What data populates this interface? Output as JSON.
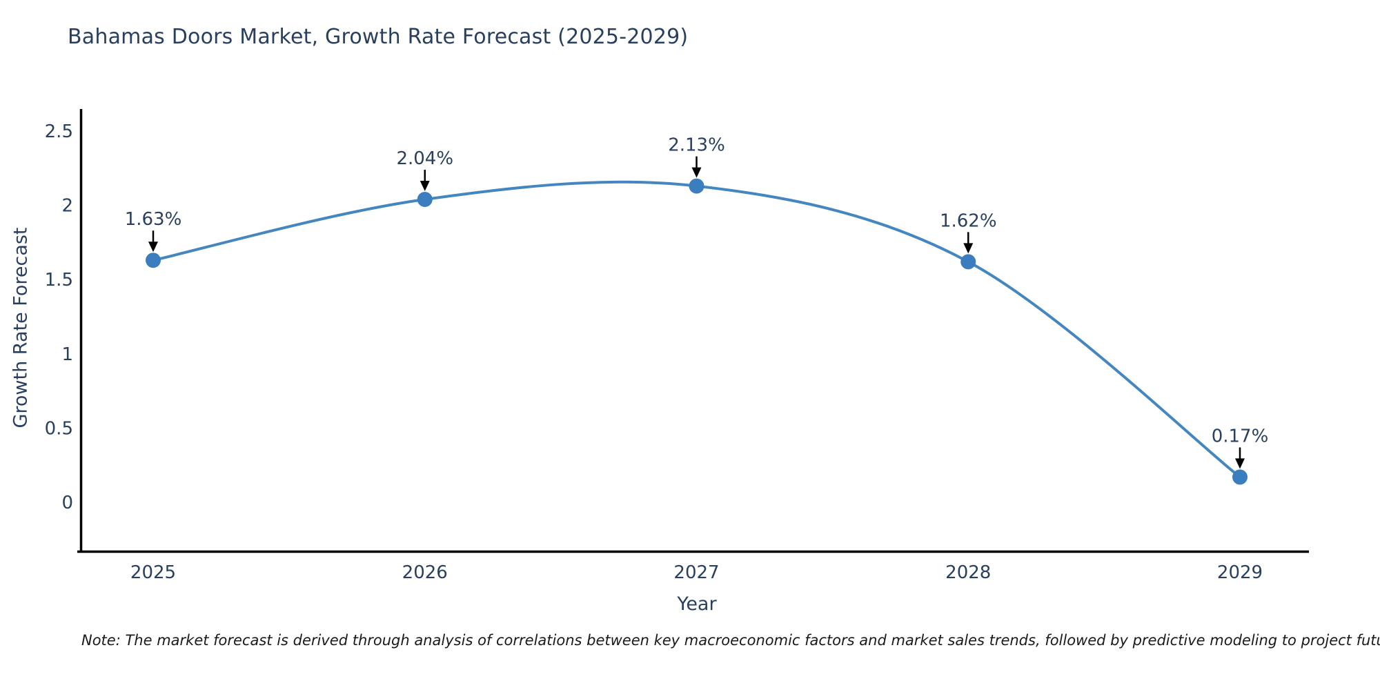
{
  "title": "Bahamas Doors Market, Growth Rate Forecast (2025-2029)",
  "note": "Note: The market forecast is derived through analysis of correlations between key macroeconomic factors and market sales trends, followed by predictive modeling to project future sales",
  "chart_data": {
    "type": "line",
    "title": "Bahamas Doors Market, Growth Rate Forecast (2025-2029)",
    "xlabel": "Year",
    "ylabel": "Growth Rate Forecast",
    "x": [
      2025,
      2026,
      2027,
      2028,
      2029
    ],
    "values": [
      1.63,
      2.04,
      2.13,
      1.62,
      0.17
    ],
    "point_labels": [
      "1.63%",
      "2.04%",
      "2.13%",
      "1.62%",
      "0.17%"
    ],
    "x_ticks": [
      "2025",
      "2026",
      "2027",
      "2028",
      "2029"
    ],
    "y_ticks": [
      "2.5",
      "2",
      "1.5",
      "1",
      "0.5",
      "0"
    ],
    "y_tick_values": [
      2.5,
      2,
      1.5,
      1,
      0.5,
      0
    ],
    "ylim": [
      -0.33,
      2.66
    ],
    "line_shape": "spline",
    "grid": false,
    "legend_position": "none",
    "colors": {
      "line": "#4486c0",
      "marker": "#3a7ebf",
      "text": "#2a3f5f",
      "axis": "#000000",
      "arrow": "#000000"
    }
  }
}
